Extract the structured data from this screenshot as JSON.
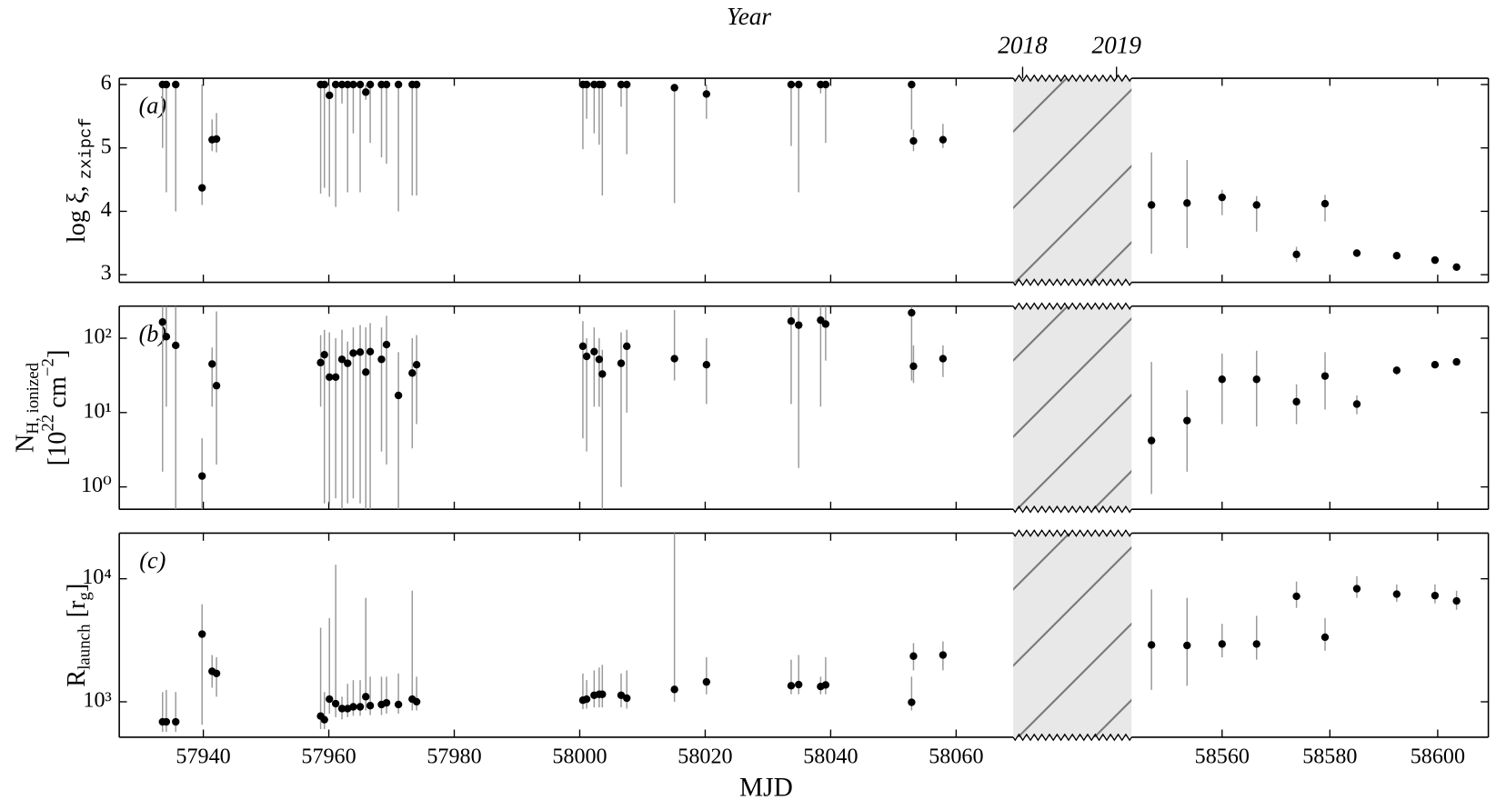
{
  "chart_data": {
    "type": "scatter",
    "xlabel": "MJD",
    "year_axis": {
      "label": "Year",
      "xlim": [
        2017.9,
        2019.16
      ],
      "xticks": [
        2018,
        2019
      ]
    },
    "segments": [
      {
        "xlim": [
          57926.6,
          58069.1
        ],
        "xticks": [
          57940,
          57960,
          57980,
          58000,
          58020,
          58040,
          58060
        ]
      },
      {
        "xlim": [
          58543.2,
          58609.4
        ],
        "xticks": [
          58560,
          58580,
          58600
        ]
      }
    ],
    "x": [
      57933.5,
      57934.1,
      57935.6,
      57939.8,
      57941.4,
      57942.1,
      57958.7,
      57959.3,
      57960.1,
      57961.1,
      57962.1,
      57963.0,
      57963.9,
      57965.0,
      57965.9,
      57966.6,
      57968.4,
      57969.2,
      57971.1,
      57973.3,
      57974.0,
      58000.5,
      58001.1,
      58002.3,
      58003.1,
      58003.6,
      58006.6,
      58007.5,
      58015.1,
      58020.2,
      58033.7,
      58034.9,
      58038.4,
      58039.2,
      58052.9,
      58053.2,
      58057.9,
      58546.9,
      58553.5,
      58560.0,
      58566.4,
      58573.8,
      58579.1,
      58585.0,
      58592.4,
      58599.5,
      58603.5
    ],
    "marker_color": "#000000",
    "errorbar_color": "#999999",
    "panels": [
      {
        "label": "(a)",
        "log": false,
        "ylabel": [
          [
            {
              "text": "log ξ, "
            },
            {
              "text": "zxipcf",
              "sub": true,
              "mono": true
            }
          ]
        ],
        "ylim": [
          2.88,
          6.1
        ],
        "yticks": [
          3,
          4,
          5,
          6
        ],
        "values": [
          6.0,
          6.0,
          6.0,
          4.37,
          5.13,
          5.14,
          6.0,
          6.0,
          5.83,
          6.0,
          6.0,
          6.0,
          6.0,
          6.0,
          5.88,
          6.0,
          6.0,
          6.0,
          6.0,
          6.0,
          6.0,
          6.0,
          6.0,
          6.0,
          6.0,
          6.0,
          6.0,
          6.0,
          5.95,
          5.85,
          6.0,
          6.0,
          6.0,
          6.0,
          6.0,
          5.11,
          5.13,
          4.1,
          4.13,
          4.22,
          4.1,
          3.32,
          4.12,
          3.34,
          3.3,
          3.23,
          3.12
        ],
        "low": [
          5.0,
          4.3,
          4.0,
          4.1,
          4.95,
          4.93,
          4.28,
          4.37,
          4.23,
          4.07,
          5.7,
          4.3,
          5.23,
          4.3,
          5.76,
          5.08,
          4.85,
          4.75,
          4.0,
          4.25,
          4.25,
          4.98,
          5.46,
          5.23,
          5.05,
          4.25,
          5.65,
          4.9,
          4.13,
          5.46,
          5.03,
          4.3,
          5.86,
          5.08,
          5.29,
          4.95,
          5.0,
          3.33,
          3.42,
          3.94,
          3.68,
          3.2,
          3.84,
          3.28,
          3.25,
          3.18,
          3.07
        ],
        "high": [
          6.0,
          6.0,
          6.0,
          6.0,
          5.45,
          5.55,
          6.0,
          6.0,
          6.0,
          6.0,
          6.0,
          6.0,
          6.0,
          6.0,
          6.0,
          6.0,
          6.0,
          6.0,
          6.0,
          6.0,
          6.0,
          6.0,
          6.0,
          6.0,
          6.0,
          6.0,
          6.0,
          6.0,
          6.0,
          6.0,
          6.0,
          6.0,
          6.0,
          6.0,
          6.0,
          5.29,
          5.38,
          4.93,
          4.81,
          4.34,
          4.24,
          3.44,
          4.26,
          3.4,
          3.35,
          3.28,
          3.17
        ]
      },
      {
        "label": "(b)",
        "log": true,
        "ylabel": [
          [
            {
              "text": "N"
            },
            {
              "text": "H, ionized",
              "sub": true
            }
          ],
          [
            {
              "text": "[10"
            },
            {
              "text": "22",
              "sup": true
            },
            {
              "text": " cm"
            },
            {
              "text": "−2",
              "sup": true
            },
            {
              "text": "]"
            }
          ]
        ],
        "ylim": [
          0.5,
          270
        ],
        "yticks": [
          {
            "value": 1,
            "label": "10⁰"
          },
          {
            "value": 10,
            "label": "10¹"
          },
          {
            "value": 100,
            "label": "10²"
          }
        ],
        "values": [
          165,
          105,
          80,
          1.4,
          45,
          23,
          47,
          60,
          30,
          30,
          52,
          46,
          63,
          65,
          35,
          66,
          52,
          82,
          17,
          34,
          44,
          78,
          57,
          66,
          52,
          33,
          46,
          78,
          53,
          44,
          170,
          150,
          175,
          155,
          220,
          42,
          53,
          4.2,
          7.8,
          28,
          28,
          14,
          31,
          13,
          37,
          44,
          48
        ],
        "low": [
          1.6,
          12,
          0.5,
          0.5,
          12,
          2,
          12,
          0.6,
          0.6,
          0.7,
          0.5,
          0.6,
          0.7,
          0.6,
          0.5,
          0.5,
          3,
          2,
          0.5,
          3.3,
          7,
          4.5,
          3,
          12,
          12,
          0.5,
          1,
          10,
          27,
          13,
          13,
          1.8,
          12,
          50,
          27,
          25,
          30,
          0.8,
          1.6,
          7,
          6.5,
          7,
          11,
          9.5,
          32,
          40,
          43
        ],
        "high": [
          270,
          270,
          270,
          4.5,
          75,
          230,
          110,
          130,
          120,
          100,
          130,
          90,
          140,
          150,
          140,
          160,
          140,
          200,
          65,
          100,
          110,
          170,
          100,
          140,
          100,
          70,
          120,
          130,
          240,
          100,
          270,
          270,
          270,
          270,
          270,
          80,
          80,
          48,
          20,
          62,
          68,
          24,
          65,
          17,
          42,
          49,
          53
        ]
      },
      {
        "label": "(c)",
        "log": true,
        "ylabel": [
          [
            {
              "text": "R"
            },
            {
              "text": "launch",
              "sub": true
            },
            {
              "text": " [r"
            },
            {
              "text": "g",
              "sub": true
            },
            {
              "text": "]"
            }
          ]
        ],
        "ylim": [
          515,
          23500
        ],
        "yticks": [
          {
            "value": 1000,
            "label": "10³"
          },
          {
            "value": 10000,
            "label": "10⁴"
          }
        ],
        "values": [
          687,
          687,
          687,
          3550,
          1770,
          1700,
          765,
          715,
          1050,
          965,
          880,
          880,
          910,
          910,
          1100,
          930,
          950,
          980,
          950,
          1050,
          1000,
          1030,
          1050,
          1130,
          1150,
          1150,
          1130,
          1070,
          1260,
          1450,
          1350,
          1380,
          1330,
          1370,
          990,
          2350,
          2400,
          2900,
          2870,
          2950,
          2950,
          7200,
          3350,
          8300,
          7500,
          7300,
          6600
        ],
        "low": [
          570,
          570,
          570,
          650,
          1300,
          1100,
          600,
          600,
          800,
          750,
          720,
          750,
          770,
          770,
          850,
          780,
          780,
          800,
          800,
          850,
          850,
          870,
          880,
          900,
          900,
          900,
          900,
          880,
          1000,
          1150,
          1150,
          1150,
          1150,
          1150,
          850,
          1800,
          1800,
          1250,
          1350,
          2300,
          2200,
          5800,
          2600,
          7000,
          6500,
          6300,
          5600
        ],
        "high": [
          1200,
          1250,
          1200,
          6200,
          2400,
          2300,
          4000,
          1200,
          4800,
          13000,
          1100,
          1400,
          1500,
          1500,
          7000,
          1600,
          1600,
          1600,
          1700,
          8000,
          1600,
          1700,
          1500,
          1800,
          1900,
          2000,
          1700,
          1800,
          23500,
          2300,
          2200,
          2400,
          1600,
          2300,
          1600,
          3000,
          3100,
          8200,
          7000,
          4300,
          5000,
          9500,
          4800,
          10500,
          9000,
          9000,
          8000
        ]
      }
    ]
  }
}
